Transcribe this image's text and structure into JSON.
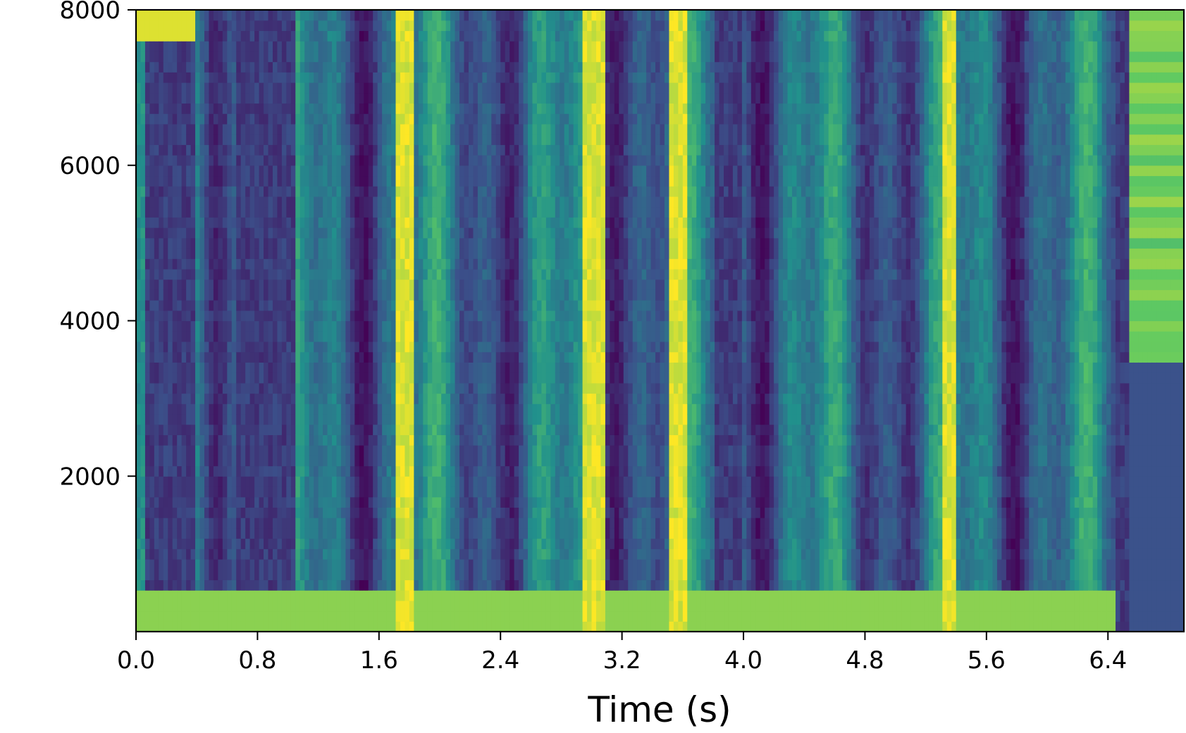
{
  "chart_data": {
    "type": "heatmap",
    "title": "",
    "xlabel": "Time (s)",
    "ylabel": "",
    "xlim": [
      0.0,
      6.9
    ],
    "ylim": [
      0,
      8000
    ],
    "x_ticks": [
      "0.0",
      "0.8",
      "1.6",
      "2.4",
      "3.2",
      "4.0",
      "4.8",
      "5.6",
      "6.4"
    ],
    "y_ticks": [
      "2000",
      "4000",
      "6000",
      "8000"
    ],
    "colormap": "viridis",
    "colormap_stops": [
      "#440154",
      "#3b528b",
      "#21918c",
      "#5ec962",
      "#fde725"
    ],
    "grid": false,
    "legend": "none",
    "bright_bands_s": [
      {
        "start": 1.7,
        "end": 1.82
      },
      {
        "start": 2.95,
        "end": 3.08
      },
      {
        "start": 3.5,
        "end": 3.64
      },
      {
        "start": 5.32,
        "end": 5.4
      }
    ],
    "dark_bands_s": [
      {
        "start": 0.05,
        "end": 0.4
      },
      {
        "start": 0.65,
        "end": 1.05
      },
      {
        "start": 3.8,
        "end": 4.0
      },
      {
        "start": 6.45,
        "end": 6.85
      }
    ]
  }
}
